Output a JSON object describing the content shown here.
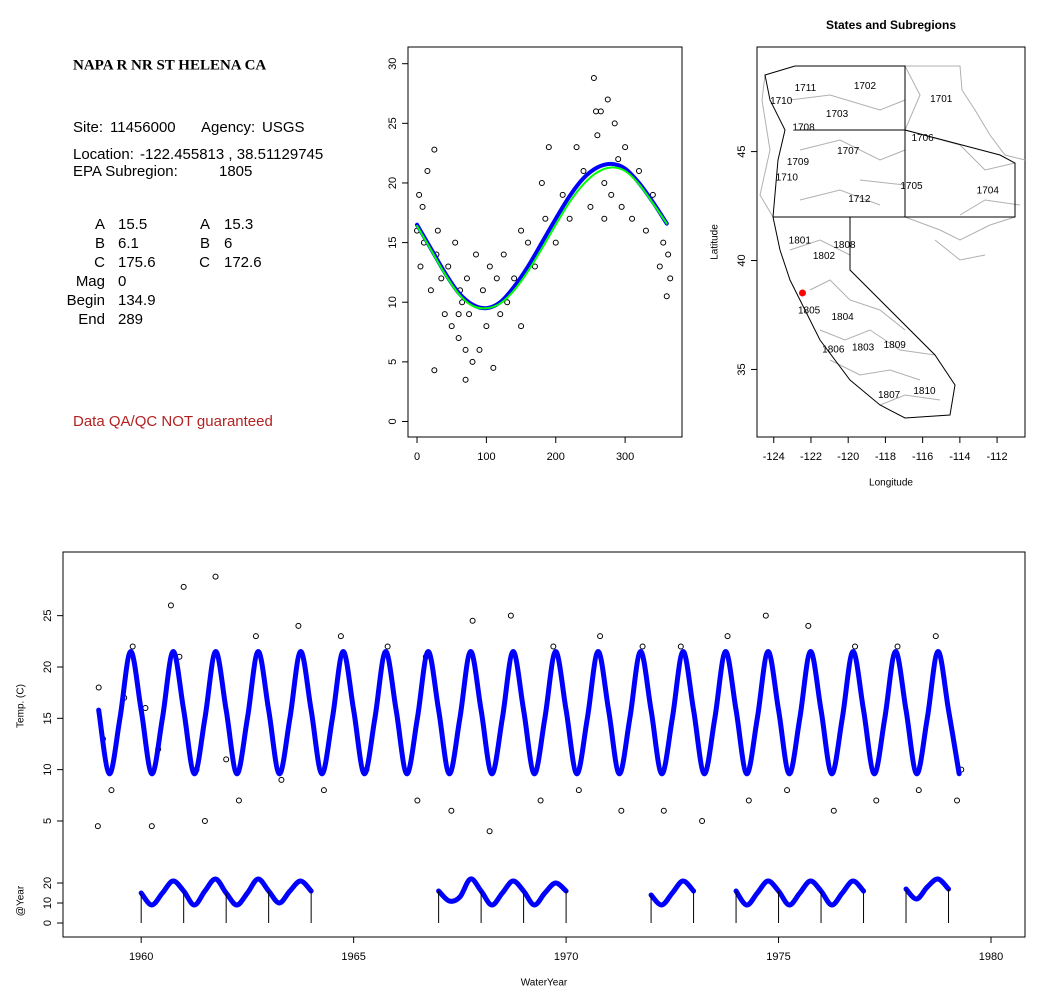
{
  "site_info": {
    "title": "NAPA R NR ST HELENA CA",
    "site_label": "Site:",
    "site": "11456000",
    "agency_label": "Agency:",
    "agency": "USGS",
    "location_label": "Location:",
    "location": "-122.455813 , 38.51129745",
    "subregion_label": "EPA Subregion:",
    "subregion": "1805",
    "params": [
      [
        "A",
        "15.5",
        "A",
        "15.3"
      ],
      [
        "B",
        "6.1",
        "B",
        "6"
      ],
      [
        "C",
        "175.6",
        "C",
        "172.6"
      ],
      [
        "Mag",
        "0"
      ],
      [
        "Begin",
        "134.9"
      ],
      [
        "End",
        "289"
      ]
    ],
    "disclaimer": "Data QA/QC NOT guaranteed"
  },
  "chart_data": [
    {
      "type": "scatter",
      "xlim": [
        -13,
        382
      ],
      "ylim": [
        -1.3,
        31.4
      ],
      "xticks": [
        0,
        100,
        200,
        300
      ],
      "yticks": [
        0,
        5,
        10,
        15,
        20,
        25,
        30
      ],
      "points": {
        "color": "#000000",
        "x": [
          0,
          3,
          5,
          8,
          10,
          15,
          20,
          25,
          28,
          30,
          35,
          40,
          45,
          50,
          55,
          60,
          62,
          65,
          70,
          72,
          75,
          80,
          85,
          90,
          95,
          100,
          105,
          110,
          115,
          120,
          125,
          130,
          140,
          150,
          160,
          170,
          180,
          185,
          190,
          200,
          210,
          220,
          230,
          240,
          250,
          255,
          260,
          265,
          270,
          275,
          280,
          285,
          290,
          295,
          300,
          310,
          320,
          330,
          340,
          350,
          355,
          360,
          362,
          365,
          25,
          60,
          70,
          258,
          270,
          150
        ],
        "y": [
          16,
          19,
          13,
          18,
          15,
          21,
          11,
          22.8,
          14,
          16,
          12,
          9,
          13,
          8,
          15,
          7,
          11,
          10,
          3.5,
          12,
          9,
          5,
          14,
          6,
          11,
          8,
          13,
          4.5,
          12,
          9,
          14,
          10,
          12,
          8,
          15,
          13,
          20,
          17,
          23,
          15,
          19,
          17,
          23,
          21,
          18,
          28.8,
          24,
          26,
          20,
          27,
          19,
          25,
          22,
          18,
          23,
          17,
          21,
          16,
          19,
          13,
          15,
          10.5,
          14,
          12,
          4.3,
          9,
          6,
          26,
          17,
          16
        ]
      },
      "series": [
        {
          "color": "#0000ff",
          "x": [
            0,
            20,
            40,
            60,
            80,
            100,
            120,
            140,
            160,
            180,
            200,
            220,
            240,
            260,
            280,
            300,
            320,
            340,
            360
          ],
          "values": [
            16.5,
            14.5,
            12.5,
            10.8,
            9.8,
            9.5,
            10,
            11.3,
            13,
            15,
            17,
            18.9,
            20.4,
            21.3,
            21.6,
            21.2,
            20,
            18.4,
            16.6
          ]
        },
        {
          "color": "#00ff00",
          "x": [
            0,
            20,
            40,
            60,
            80,
            100,
            120,
            140,
            160,
            180,
            200,
            220,
            240,
            260,
            280,
            300,
            320,
            340,
            360
          ],
          "values": [
            16.4,
            14.4,
            12.4,
            10.7,
            9.7,
            9.5,
            9.9,
            11,
            12.6,
            14.5,
            16.5,
            18.4,
            19.9,
            20.9,
            21.3,
            21,
            19.9,
            18.3,
            16.6
          ]
        }
      ]
    },
    {
      "type": "map",
      "title": "States and Subregions",
      "xlabel": "Longitude",
      "ylabel": "Latitude",
      "xlim": [
        -124.9,
        -110.5
      ],
      "ylim": [
        31.9,
        49.8
      ],
      "xticks": [
        -124,
        -122,
        -120,
        -118,
        -116,
        -114,
        -112
      ],
      "yticks": [
        35,
        40,
        45
      ],
      "regions": [
        {
          "name": "1711",
          "lon": -122.3,
          "lat": 47.9
        },
        {
          "name": "1702",
          "lon": -119.1,
          "lat": 48.0
        },
        {
          "name": "1710",
          "lon": -123.6,
          "lat": 47.3
        },
        {
          "name": "1701",
          "lon": -115.0,
          "lat": 47.4
        },
        {
          "name": "1703",
          "lon": -120.6,
          "lat": 46.7
        },
        {
          "name": "1708",
          "lon": -122.4,
          "lat": 46.1
        },
        {
          "name": "1706",
          "lon": -116.0,
          "lat": 45.6
        },
        {
          "name": "1707",
          "lon": -120.0,
          "lat": 45.0
        },
        {
          "name": "1709",
          "lon": -122.7,
          "lat": 44.5
        },
        {
          "name": "1710",
          "lon": -123.3,
          "lat": 43.8
        },
        {
          "name": "1705",
          "lon": -116.6,
          "lat": 43.4
        },
        {
          "name": "1704",
          "lon": -112.5,
          "lat": 43.2
        },
        {
          "name": "1712",
          "lon": -119.4,
          "lat": 42.8
        },
        {
          "name": "1801",
          "lon": -122.6,
          "lat": 40.9
        },
        {
          "name": "1808",
          "lon": -120.2,
          "lat": 40.7
        },
        {
          "name": "1802",
          "lon": -121.3,
          "lat": 40.2
        },
        {
          "name": "1805",
          "lon": -122.1,
          "lat": 37.7
        },
        {
          "name": "1804",
          "lon": -120.3,
          "lat": 37.4
        },
        {
          "name": "1809",
          "lon": -117.5,
          "lat": 36.1
        },
        {
          "name": "1806",
          "lon": -120.8,
          "lat": 35.9
        },
        {
          "name": "1803",
          "lon": -119.2,
          "lat": 36.0
        },
        {
          "name": "1810",
          "lon": -115.9,
          "lat": 34.0
        },
        {
          "name": "1807",
          "lon": -117.8,
          "lat": 33.8
        }
      ],
      "site_point": {
        "lon": -122.455813,
        "lat": 38.51129745,
        "color": "#ff0000"
      }
    },
    {
      "type": "line",
      "ylabel": "Temp. (C)",
      "xlim": [
        1958.16,
        1980.8
      ],
      "ylim": [
        1.2,
        31.2
      ],
      "yticks": [
        5,
        10,
        15,
        20,
        25
      ],
      "points": {
        "color": "#000000",
        "x": [
          1958.98,
          1959.0,
          1959.1,
          1959.3,
          1959.6,
          1959.8,
          1960.1,
          1960.25,
          1960.4,
          1960.7,
          1960.9,
          1961.0,
          1961.3,
          1961.5,
          1961.75,
          1962.0,
          1962.3,
          1962.7,
          1963.3,
          1963.7,
          1964.3,
          1964.7,
          1965.3,
          1965.8,
          1966.5,
          1966.7,
          1967.3,
          1967.8,
          1968.2,
          1968.7,
          1969.4,
          1969.7,
          1970.3,
          1970.8,
          1971.3,
          1971.8,
          1972.3,
          1972.7,
          1973.2,
          1973.8,
          1974.3,
          1974.7,
          1975.2,
          1975.7,
          1976.3,
          1976.8,
          1977.3,
          1977.8,
          1978.3,
          1978.7,
          1979.2,
          1979.3
        ],
        "y": [
          4.5,
          18,
          13,
          8,
          17,
          22,
          16,
          4.5,
          12,
          26,
          21,
          27.8,
          10,
          5,
          28.8,
          11,
          7,
          23,
          9,
          24,
          8,
          23,
          10,
          22,
          7,
          21,
          6,
          24.5,
          4,
          25,
          7,
          22,
          8,
          23,
          6,
          22,
          6,
          22,
          5,
          23,
          7,
          25,
          8,
          24,
          6,
          22,
          7,
          22,
          8,
          23,
          7,
          10
        ]
      },
      "series": [
        {
          "color": "#0000ff",
          "x": [
            1959,
            1959.25,
            1959.5,
            1959.75,
            1960,
            1960.25,
            1960.5,
            1960.75,
            1961,
            1961.25,
            1961.5,
            1961.75,
            1962,
            1962.25,
            1962.5,
            1962.75,
            1963,
            1963.25,
            1963.5,
            1963.75,
            1964,
            1964.25,
            1964.5,
            1964.75,
            1965,
            1965.25,
            1965.5,
            1965.75,
            1966,
            1966.25,
            1966.5,
            1966.75,
            1967,
            1967.25,
            1967.5,
            1967.75,
            1968,
            1968.25,
            1968.5,
            1968.75,
            1969,
            1969.25,
            1969.5,
            1969.75,
            1970,
            1970.25,
            1970.5,
            1970.75,
            1971,
            1971.25,
            1971.5,
            1971.75,
            1972,
            1972.25,
            1972.5,
            1972.75,
            1973,
            1973.25,
            1973.5,
            1973.75,
            1974,
            1974.25,
            1974.5,
            1974.75,
            1975,
            1975.25,
            1975.5,
            1975.75,
            1976,
            1976.25,
            1976.5,
            1976.75,
            1977,
            1977.25,
            1977.5,
            1977.75,
            1978,
            1978.25,
            1978.5,
            1978.75,
            1979,
            1979.25
          ],
          "values": [
            15.8,
            9.6,
            15.0,
            21.5,
            15.8,
            9.6,
            15.0,
            21.5,
            15.8,
            9.6,
            15.0,
            21.5,
            15.8,
            9.6,
            15.0,
            21.5,
            15.8,
            9.6,
            15.0,
            21.5,
            15.8,
            9.6,
            15.0,
            21.5,
            15.8,
            9.6,
            15.0,
            21.5,
            15.8,
            9.6,
            15.0,
            21.5,
            15.8,
            9.6,
            15.0,
            21.5,
            15.8,
            9.6,
            15.0,
            21.5,
            15.8,
            9.6,
            15.0,
            21.5,
            15.8,
            9.6,
            15.0,
            21.5,
            15.8,
            9.6,
            15.0,
            21.5,
            15.8,
            9.6,
            15.0,
            21.5,
            15.8,
            9.6,
            15.0,
            21.5,
            15.8,
            9.6,
            15.0,
            21.5,
            15.8,
            9.6,
            15.0,
            21.5,
            15.8,
            9.6,
            15.0,
            21.5,
            15.8,
            9.6,
            15.0,
            21.5,
            15.8,
            9.6,
            15.0,
            21.5,
            15.8,
            9.6
          ]
        }
      ]
    },
    {
      "type": "line",
      "ylabel": "@Year",
      "xlabel": "WaterYear",
      "xlim": [
        1958.16,
        1980.8
      ],
      "ylim": [
        -7,
        29
      ],
      "xticks": [
        1960,
        1965,
        1970,
        1975,
        1980
      ],
      "yticks": [
        0,
        10,
        20
      ],
      "series": [
        {
          "color": "#0000ff",
          "x": [
            1960,
            1960.25,
            1960.5,
            1960.75,
            1961,
            1961.25,
            1961.5,
            1961.75,
            1962,
            1962.25,
            1962.5,
            1962.75,
            1963,
            1963.25,
            1963.5,
            1963.75,
            1964,
            null,
            1967,
            1967.25,
            1967.5,
            1967.75,
            1968,
            1968.25,
            1968.5,
            1968.75,
            1969,
            1969.25,
            1969.5,
            1969.75,
            1970,
            null,
            1972,
            1972.25,
            1972.5,
            1972.75,
            1973,
            null,
            1974,
            1974.25,
            1974.5,
            1974.75,
            1975,
            1975.25,
            1975.5,
            1975.75,
            1976,
            1976.25,
            1976.5,
            1976.75,
            1977,
            null,
            1978,
            1978.25,
            1978.5,
            1978.75,
            1979
          ],
          "values": [
            15,
            9,
            15,
            21,
            16,
            9,
            16,
            22,
            15,
            9,
            15,
            22,
            16,
            10,
            16,
            21,
            16,
            null,
            16,
            11,
            13,
            22,
            16,
            9,
            15,
            21,
            16,
            9,
            15,
            20,
            16,
            null,
            14,
            9,
            15,
            21,
            16,
            null,
            16,
            9,
            15,
            21,
            16,
            9,
            15,
            21,
            16,
            9,
            15,
            21,
            16,
            null,
            17,
            12,
            18,
            22,
            17
          ]
        }
      ],
      "year_marks": [
        1960,
        1961,
        1962,
        1963,
        1964,
        1967,
        1968,
        1969,
        1970,
        1972,
        1973,
        1974,
        1975,
        1976,
        1977,
        1978,
        1979
      ]
    }
  ]
}
